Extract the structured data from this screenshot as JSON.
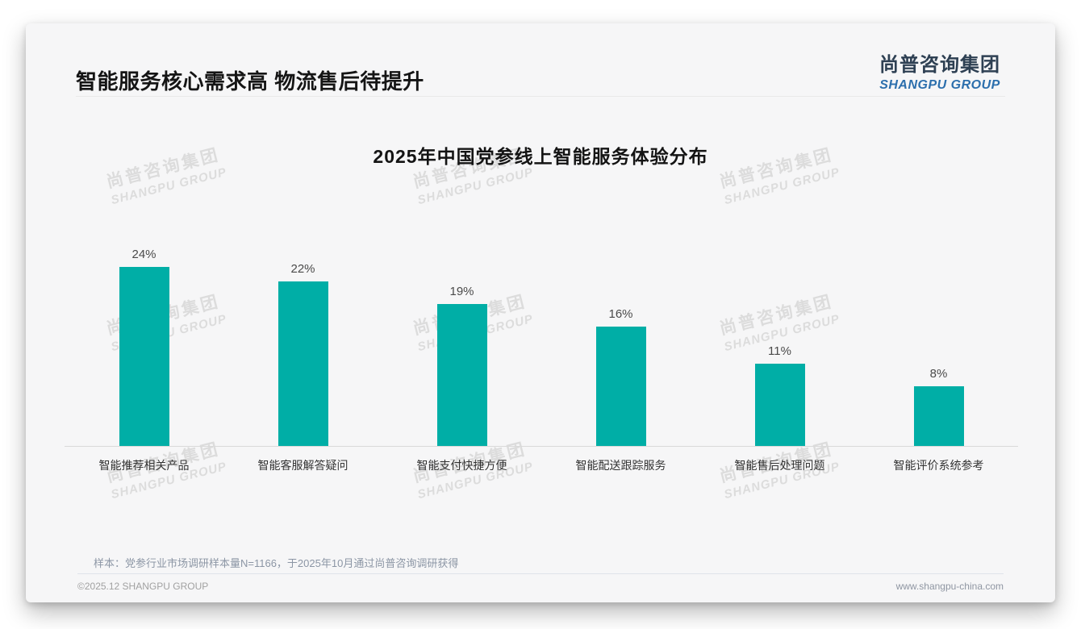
{
  "header": {
    "title": "智能服务核心需求高 物流售后待提升"
  },
  "logo": {
    "cn": "尚普咨询集团",
    "en": "SHANGPU GROUP"
  },
  "watermark": {
    "cn": "尚普咨询集团",
    "en": "SHANGPU GROUP"
  },
  "chart_data": {
    "type": "bar",
    "title": "2025年中国党参线上智能服务体验分布",
    "categories": [
      "智能推荐相关产品",
      "智能客服解答疑问",
      "智能支付快捷方便",
      "智能配送跟踪服务",
      "智能售后处理问题",
      "智能评价系统参考"
    ],
    "values": [
      24,
      22,
      19,
      16,
      11,
      8
    ],
    "value_labels": [
      "24%",
      "22%",
      "19%",
      "16%",
      "11%",
      "8%"
    ],
    "unit": "%",
    "xlabel": "",
    "ylabel": "",
    "ylim": [
      0,
      26
    ],
    "grid": false,
    "legend": false,
    "bar_color": "#00aea6"
  },
  "note": "样本：党参行业市场调研样本量N=1166，于2025年10月通过尚普咨询调研获得",
  "footer": {
    "left": "©2025.12 SHANGPU GROUP",
    "right": "www.shangpu-china.com"
  },
  "colors": {
    "bar": "#00aea6",
    "card_bg": "#f6f6f7",
    "watermark": "#dcdcdc",
    "logo_cn": "#2e4053",
    "logo_en": "#2c6fad",
    "axis": "#d9d9d9",
    "note_text": "#8c96a5"
  }
}
